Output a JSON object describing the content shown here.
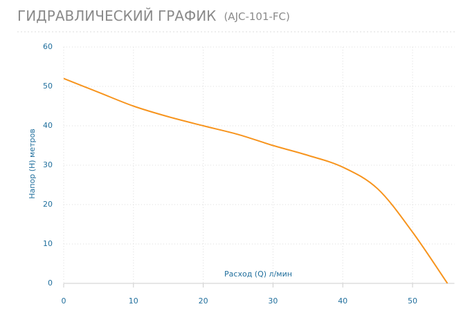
{
  "chart_data": {
    "type": "line",
    "title": "ГИДРАВЛИЧЕСКИЙ ГРАФИК",
    "subtitle": "(AJC-101-FC)",
    "x_label": "Расход (Q) л/мин",
    "y_label": "Напор (H) метров",
    "x": [
      0,
      5,
      10,
      15,
      20,
      25,
      30,
      35,
      40,
      45,
      50,
      55
    ],
    "series": [
      {
        "name": "AJC-101-FC",
        "color": "#f7941d",
        "values": [
          52,
          48.5,
          45,
          42.3,
          40,
          37.8,
          35,
          32.5,
          29.5,
          24,
          13,
          0
        ]
      }
    ],
    "xlim": [
      0,
      56
    ],
    "xticks": [
      0,
      10,
      20,
      30,
      40,
      50
    ],
    "ylim": [
      0,
      60
    ],
    "yticks": [
      0,
      10,
      20,
      30,
      40,
      50,
      60
    ],
    "grid": true
  }
}
